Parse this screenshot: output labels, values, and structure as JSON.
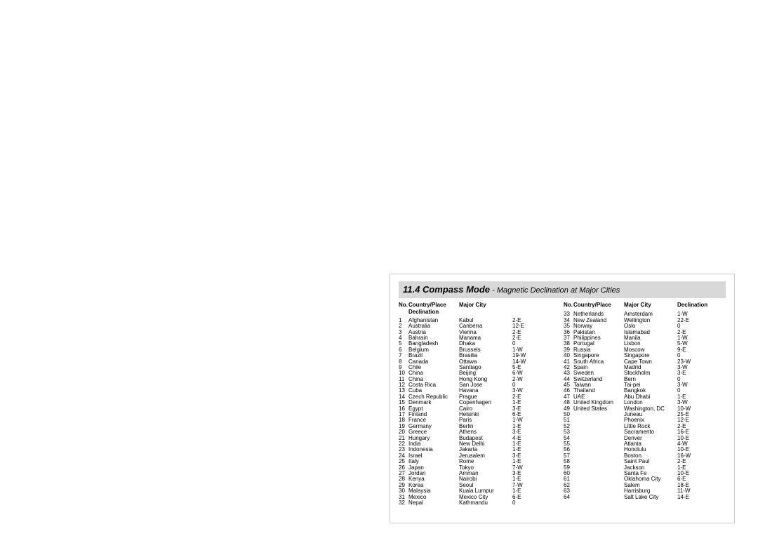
{
  "title": {
    "section": "11.4 Compass Mode",
    "dash": " - ",
    "subtitle": "Magnetic Declination at Major Cities"
  },
  "headers": {
    "no": "No.",
    "country": "Country/Place",
    "city": "Major City",
    "declination": "Declination"
  },
  "left": [
    {
      "no": "1",
      "place": "Afghanistan",
      "city": "Kabul",
      "dec": "2-E"
    },
    {
      "no": "2",
      "place": "Australia",
      "city": "Canberra",
      "dec": "12-E"
    },
    {
      "no": "3",
      "place": "Austria",
      "city": "Vienna",
      "dec": "2-E"
    },
    {
      "no": "4",
      "place": "Bahrain",
      "city": "Manama",
      "dec": "2-E"
    },
    {
      "no": "5",
      "place": "Bangladesh",
      "city": "Dhaka",
      "dec": "0"
    },
    {
      "no": "6",
      "place": "Belgium",
      "city": "Brussels",
      "dec": "1-W"
    },
    {
      "no": "7",
      "place": "Brazil",
      "city": "Brasilia",
      "dec": "19-W"
    },
    {
      "no": "8",
      "place": "Canada",
      "city": "Ottawa",
      "dec": "14-W"
    },
    {
      "no": "9",
      "place": "Chile",
      "city": "Santiago",
      "dec": "5-E"
    },
    {
      "no": "10",
      "place": "China",
      "city": "Beijing",
      "dec": "6-W"
    },
    {
      "no": "11",
      "place": "China",
      "city": "Hong Kong",
      "dec": "2-W"
    },
    {
      "no": "12",
      "place": "Costa Rica",
      "city": "San Jose",
      "dec": "0"
    },
    {
      "no": "13",
      "place": "Cuba",
      "city": "Havana",
      "dec": "3-W"
    },
    {
      "no": "14",
      "place": "Czech Republic",
      "city": "Prague",
      "dec": "2-E"
    },
    {
      "no": "15",
      "place": "Denmark",
      "city": "Copenhagen",
      "dec": "1-E"
    },
    {
      "no": "16",
      "place": "Egypt",
      "city": "Cairo",
      "dec": "3-E"
    },
    {
      "no": "17",
      "place": "Finland",
      "city": "Helsinki",
      "dec": "6-E"
    },
    {
      "no": "18",
      "place": "France",
      "city": "Paris",
      "dec": "1-W"
    },
    {
      "no": "19",
      "place": "Germany",
      "city": "Berlin",
      "dec": "1-E"
    },
    {
      "no": "20",
      "place": "Greece",
      "city": "Athens",
      "dec": "3-E"
    },
    {
      "no": "21",
      "place": "Hungary",
      "city": "Budapest",
      "dec": "4-E"
    },
    {
      "no": "22",
      "place": "India",
      "city": "New Delhi",
      "dec": "1-E"
    },
    {
      "no": "23",
      "place": "Indonesia",
      "city": "Jakarta",
      "dec": "1-E"
    },
    {
      "no": "24",
      "place": "Israel",
      "city": "Jerusalem",
      "dec": "3-E"
    },
    {
      "no": "25",
      "place": "Italy",
      "city": "Rome",
      "dec": "1-E"
    },
    {
      "no": "26",
      "place": "Japan",
      "city": "Tokyo",
      "dec": "7-W"
    },
    {
      "no": "27",
      "place": "Jordan",
      "city": "Amman",
      "dec": "3-E"
    },
    {
      "no": "28",
      "place": "Kenya",
      "city": "Nairobi",
      "dec": "1-E"
    },
    {
      "no": "29",
      "place": "Korea",
      "city": "Seoul",
      "dec": "7-W"
    },
    {
      "no": "30",
      "place": "Malaysia",
      "city": "Kuala Lumpur",
      "dec": "1-E"
    },
    {
      "no": "31",
      "place": "Mexico",
      "city": "Mexico City",
      "dec": "6-E"
    },
    {
      "no": "32",
      "place": "Nepal",
      "city": "Kathmandu",
      "dec": "0"
    }
  ],
  "right": [
    {
      "no": "33",
      "place": "Netherlands",
      "city": "Amsterdam",
      "dec": "1-W"
    },
    {
      "no": "34",
      "place": "New Zealand",
      "city": "Wellington",
      "dec": "22-E"
    },
    {
      "no": "35",
      "place": "Norway",
      "city": "Oslo",
      "dec": "0"
    },
    {
      "no": "36",
      "place": "Pakistan",
      "city": "Islamabad",
      "dec": "2-E"
    },
    {
      "no": "37",
      "place": "Philippines",
      "city": "Manila",
      "dec": "1-W"
    },
    {
      "no": "38",
      "place": "Portugal",
      "city": "Lisbon",
      "dec": "5-W"
    },
    {
      "no": "39",
      "place": "Russia",
      "city": "Moscow",
      "dec": "9-E"
    },
    {
      "no": "40",
      "place": "Singapore",
      "city": "Singapore",
      "dec": "0"
    },
    {
      "no": "41",
      "place": "South Africa",
      "city": "Cape Town",
      "dec": "23-W"
    },
    {
      "no": "42",
      "place": "Spain",
      "city": "Madrid",
      "dec": "3-W"
    },
    {
      "no": "43",
      "place": "Sweden",
      "city": "Stockholm",
      "dec": "3-E"
    },
    {
      "no": "44",
      "place": "Switzerland",
      "city": "Bern",
      "dec": "0"
    },
    {
      "no": "45",
      "place": "Taiwan",
      "city": "Tai-pei",
      "dec": "3-W"
    },
    {
      "no": "46",
      "place": "Thailand",
      "city": "Bangkok",
      "dec": "0"
    },
    {
      "no": "47",
      "place": "UAE",
      "city": "Abu Dhabi",
      "dec": "1-E"
    },
    {
      "no": "48",
      "place": "United Kingdom",
      "city": "London",
      "dec": "3-W"
    },
    {
      "no": "49",
      "place": "United States",
      "city": "Washington, DC",
      "dec": "10-W"
    },
    {
      "no": "50",
      "place": "",
      "city": "Juneau",
      "dec": "25-E"
    },
    {
      "no": "51",
      "place": "",
      "city": "Phoenix",
      "dec": "12-E"
    },
    {
      "no": "52",
      "place": "",
      "city": "Little Rock",
      "dec": "2-E"
    },
    {
      "no": "53",
      "place": "",
      "city": "Sacramento",
      "dec": "16-E"
    },
    {
      "no": "54",
      "place": "",
      "city": "Denver",
      "dec": "10-E"
    },
    {
      "no": "55",
      "place": "",
      "city": "Atlanta",
      "dec": "4-W"
    },
    {
      "no": "56",
      "place": "",
      "city": "Honolulu",
      "dec": "10-E"
    },
    {
      "no": "57",
      "place": "",
      "city": "Boston",
      "dec": "16-W"
    },
    {
      "no": "58",
      "place": "",
      "city": "Saint Paul",
      "dec": "2-E"
    },
    {
      "no": "59",
      "place": "",
      "city": "Jackson",
      "dec": "1-E"
    },
    {
      "no": "60",
      "place": "",
      "city": "Santa Fe",
      "dec": "10-E"
    },
    {
      "no": "61",
      "place": "",
      "city": "Oklahoma City",
      "dec": "6-E"
    },
    {
      "no": "62",
      "place": "",
      "city": "Salem",
      "dec": "18-E"
    },
    {
      "no": "63",
      "place": "",
      "city": "Harrisburg",
      "dec": "11-W"
    },
    {
      "no": "64",
      "place": "",
      "city": "Salt Lake City",
      "dec": "14-E"
    }
  ]
}
